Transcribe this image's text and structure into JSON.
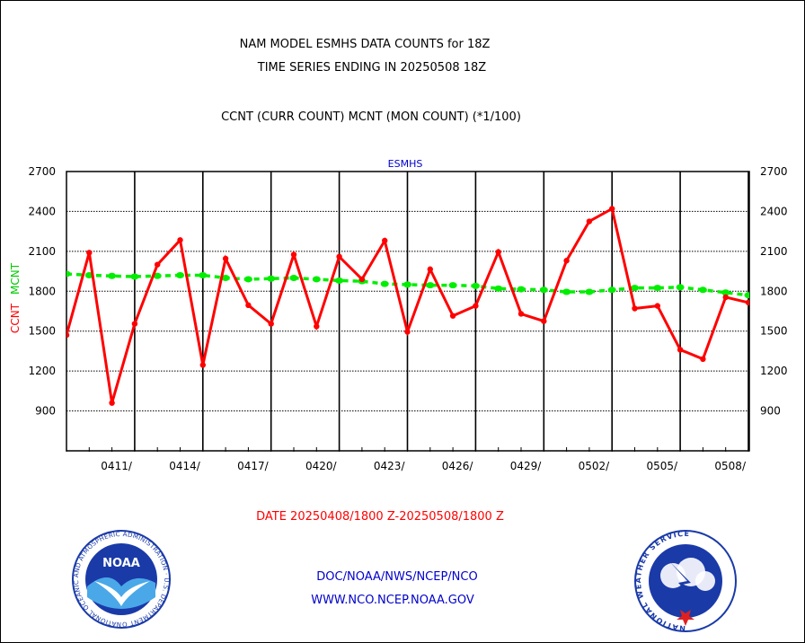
{
  "chart_data": {
    "type": "line",
    "title": "NAM MODEL ESMHS DATA COUNTS for 18Z",
    "subtitle": "TIME SERIES ENDING IN 20250508 18Z",
    "description": "CCNT (CURR COUNT) MCNT (MON COUNT) (*1/100)",
    "panel_label": "ESMHS",
    "ylabel_left_ccnt": "CCNT",
    "ylabel_left_mcnt": "MCNT",
    "xlabel": "DATE 20250408/1800 Z-20250508/1800 Z",
    "ylim": [
      600,
      2700
    ],
    "y_ticks": [
      "2700",
      "2400",
      "2100",
      "1800",
      "1500",
      "1200",
      "900"
    ],
    "x_ticks": [
      "0411/",
      "0414/",
      "0417/",
      "0420/",
      "0423/",
      "0426/",
      "0429/",
      "0502/",
      "0505/",
      "0508/"
    ],
    "grid": true,
    "x_dates": [
      "0408",
      "0409",
      "0410",
      "0411",
      "0412",
      "0413",
      "0414",
      "0415",
      "0416",
      "0417",
      "0418",
      "0419",
      "0420",
      "0421",
      "0422",
      "0423",
      "0424",
      "0425",
      "0426",
      "0427",
      "0428",
      "0429",
      "0430",
      "0501",
      "0502",
      "0503",
      "0504",
      "0505",
      "0506",
      "0507",
      "0508"
    ],
    "series": [
      {
        "name": "CCNT",
        "color": "#ff0000",
        "values": [
          1470,
          2090,
          960,
          1555,
          2000,
          2185,
          1245,
          2045,
          1695,
          1555,
          2075,
          1535,
          2060,
          1890,
          2180,
          1495,
          1965,
          1615,
          1690,
          2095,
          1630,
          1575,
          2030,
          2325,
          2420,
          1670,
          1690,
          1360,
          1290,
          1755,
          1715
        ]
      },
      {
        "name": "MCNT",
        "color": "#00ee00",
        "values": [
          1930,
          1920,
          1915,
          1910,
          1915,
          1920,
          1920,
          1900,
          1890,
          1895,
          1900,
          1890,
          1880,
          1875,
          1855,
          1850,
          1845,
          1845,
          1840,
          1820,
          1815,
          1810,
          1795,
          1795,
          1810,
          1825,
          1825,
          1830,
          1810,
          1790,
          1770
        ]
      }
    ]
  },
  "footer": {
    "links_line1": "DOC/NOAA/NWS/NCEP/NCO",
    "links_line2": "WWW.NCO.NCEP.NOAA.GOV"
  },
  "logos": {
    "left": {
      "name": "noaa-logo",
      "text": "NOAA",
      "ring_text": "NATIONAL OCEANIC AND ATMOSPHERIC ADMINISTRATION · U.S. DEPARTMENT OF COMMERCE"
    },
    "right": {
      "name": "nws-logo",
      "ring_text": "NATIONAL WEATHER SERVICE"
    }
  },
  "colors": {
    "title": "#000000",
    "panel_label": "#0000cc",
    "xlabel": "#ff0000",
    "footer": "#0000cc"
  }
}
